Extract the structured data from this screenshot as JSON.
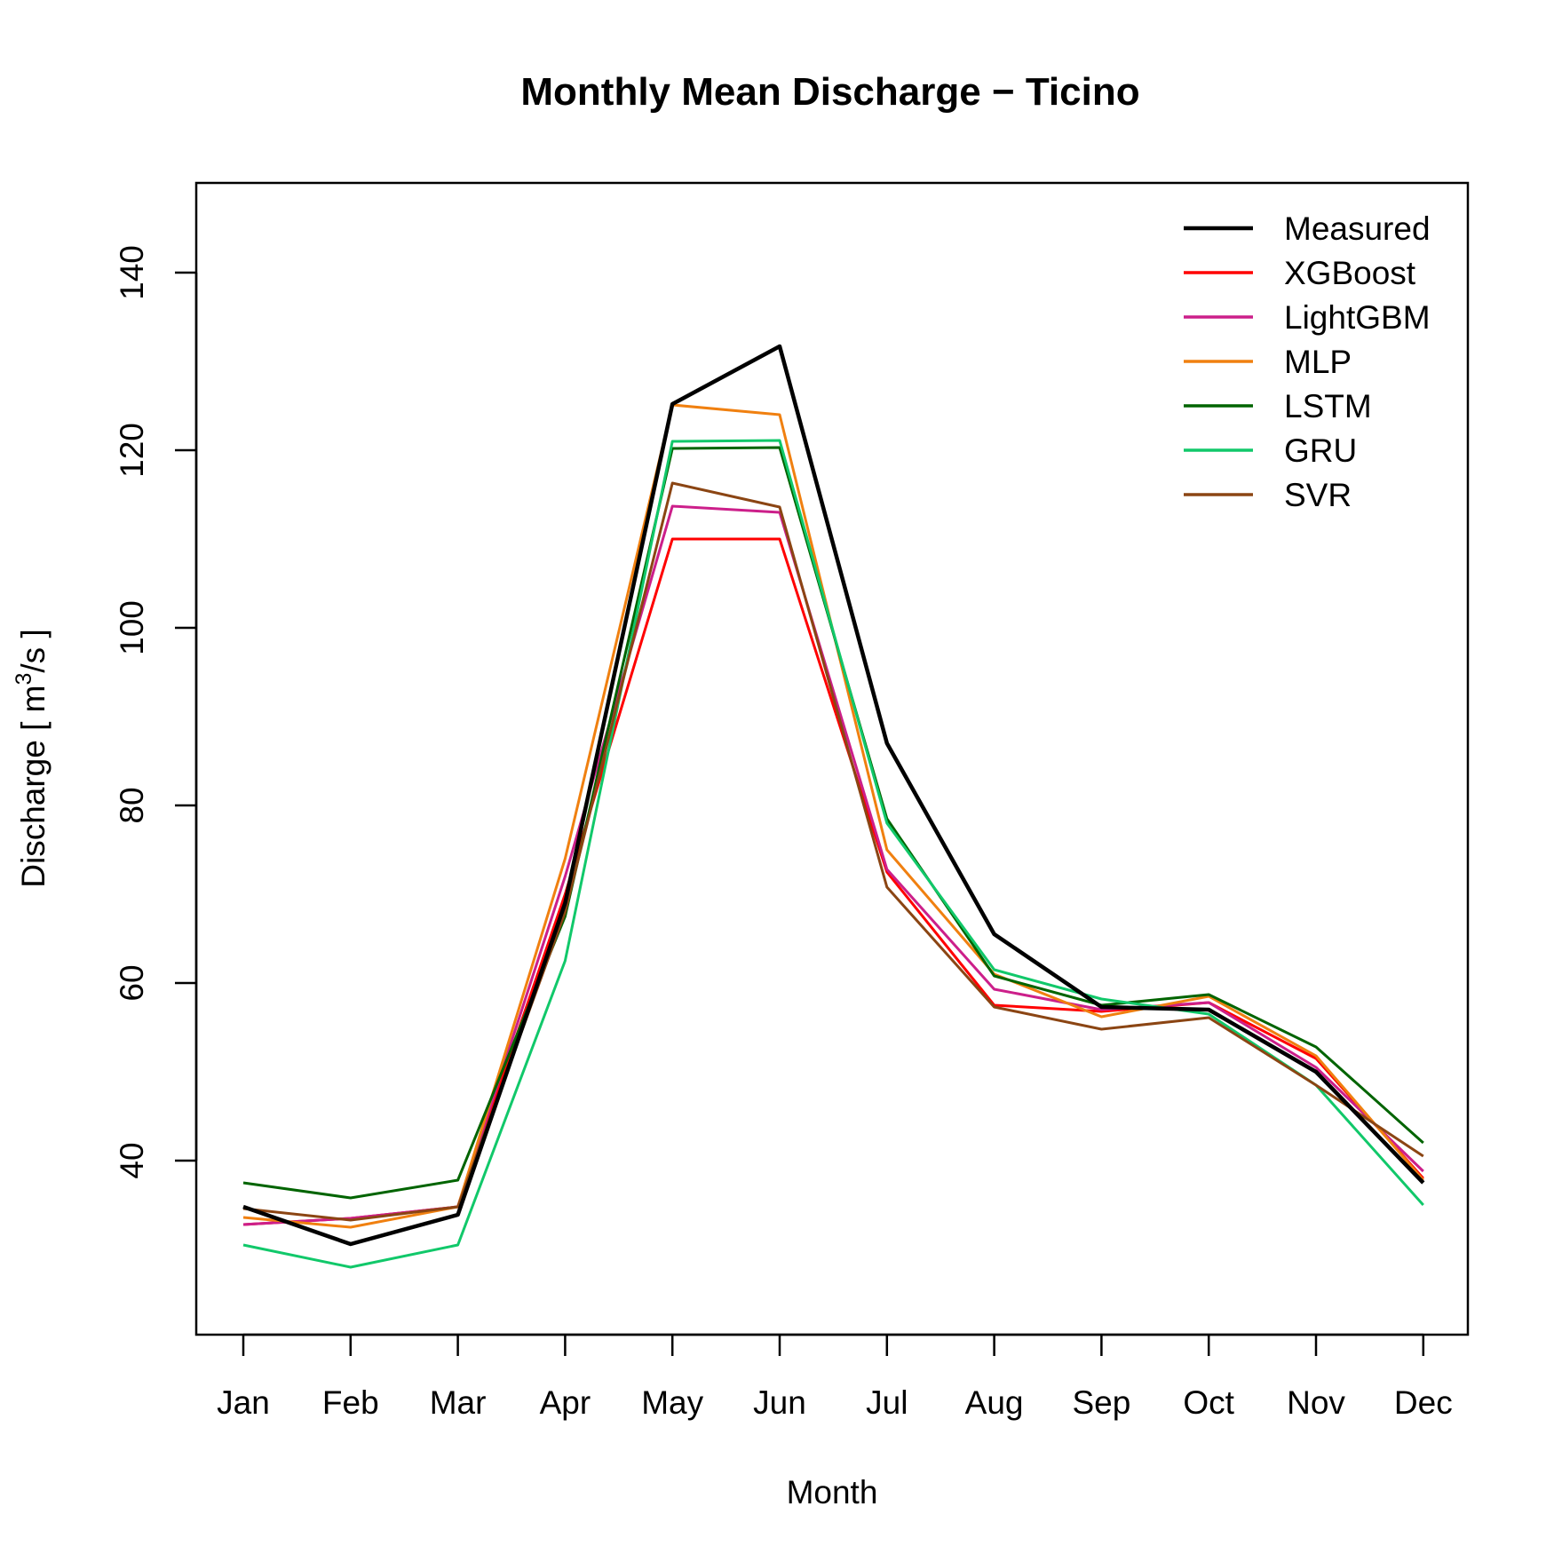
{
  "chart_data": {
    "type": "line",
    "title": "Monthly Mean Discharge − Ticino",
    "xlabel": "Month",
    "ylabel": {
      "prefix": "Discharge [ m",
      "superscript": "3",
      "suffix": "/s ]"
    },
    "categories": [
      "Jan",
      "Feb",
      "Mar",
      "Apr",
      "May",
      "Jun",
      "Jul",
      "Aug",
      "Sep",
      "Oct",
      "Nov",
      "Dec"
    ],
    "ylim": [
      20,
      150
    ],
    "yticks": [
      40,
      60,
      80,
      100,
      120,
      140
    ],
    "grid": false,
    "legend_position": "top-right",
    "series": [
      {
        "name": "Measured",
        "color": "#000000",
        "values": [
          34.8,
          30.6,
          33.9,
          69.0,
          125.2,
          131.7,
          87.0,
          65.5,
          57.3,
          57.0,
          50.0,
          37.5
        ]
      },
      {
        "name": "XGBoost",
        "color": "#ff0000",
        "values": [
          32.8,
          33.5,
          34.8,
          70.0,
          110.0,
          110.0,
          72.5,
          57.5,
          56.8,
          57.8,
          51.5,
          38.0
        ]
      },
      {
        "name": "LightGBM",
        "color": "#cc1f8a",
        "values": [
          32.8,
          33.5,
          34.8,
          72.0,
          113.7,
          113.0,
          72.8,
          59.3,
          57.0,
          57.8,
          50.5,
          38.8
        ]
      },
      {
        "name": "MLP",
        "color": "#f08010",
        "values": [
          33.6,
          32.5,
          34.8,
          74.0,
          125.1,
          124.0,
          75.0,
          61.0,
          56.2,
          58.5,
          51.8,
          37.8
        ]
      },
      {
        "name": "LSTM",
        "color": "#006400",
        "values": [
          37.5,
          35.8,
          37.8,
          67.5,
          120.2,
          120.3,
          78.5,
          60.8,
          57.5,
          58.7,
          52.8,
          42.0
        ]
      },
      {
        "name": "GRU",
        "color": "#11c86a",
        "values": [
          30.5,
          28.0,
          30.5,
          62.5,
          121.0,
          121.1,
          78.0,
          61.5,
          58.2,
          56.5,
          48.5,
          35.0
        ]
      },
      {
        "name": "SVR",
        "color": "#8b4513",
        "values": [
          34.6,
          33.3,
          34.8,
          68.0,
          116.3,
          113.6,
          70.8,
          57.3,
          54.8,
          56.1,
          48.5,
          40.5
        ]
      }
    ]
  }
}
